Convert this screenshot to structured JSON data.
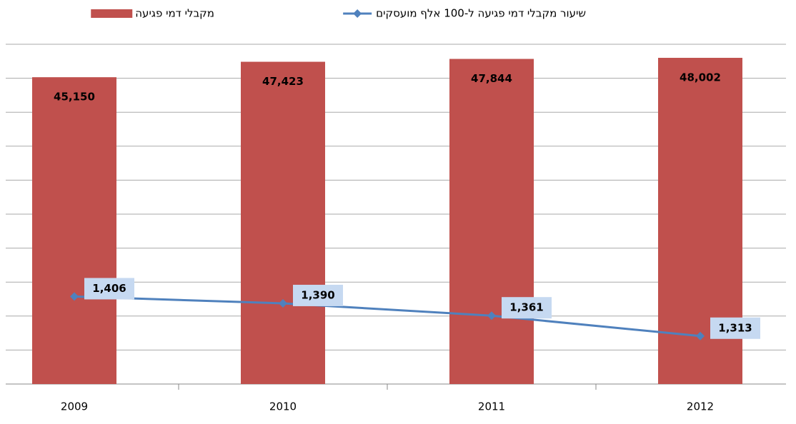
{
  "chart_data": {
    "type": "bar_line",
    "categories": [
      "2009",
      "2010",
      "2011",
      "2012"
    ],
    "series": [
      {
        "name": "מקבלי דמי פגיעה",
        "type": "bar",
        "color": "#c0504d",
        "values": [
          45150,
          47423,
          47844,
          48002
        ],
        "value_labels": [
          "45,150",
          "47,423",
          "47,844",
          "48,002"
        ]
      },
      {
        "name": "שיעור מקבלי דמי פגיעה ל-100 אלף מועסקים",
        "type": "line",
        "axis": "y2",
        "color": "#4f81bd",
        "values": [
          1406,
          1390,
          1361,
          1313
        ],
        "value_labels": [
          "1,406",
          "1,390",
          "1,361",
          "1,313"
        ]
      }
    ],
    "ylim": [
      0,
      50000
    ],
    "yticks": [
      0,
      5000,
      10000,
      15000,
      20000,
      25000,
      30000,
      35000,
      40000,
      45000,
      50000
    ],
    "y2lim": [
      1200,
      2000
    ],
    "grid": true,
    "legend": "top"
  }
}
